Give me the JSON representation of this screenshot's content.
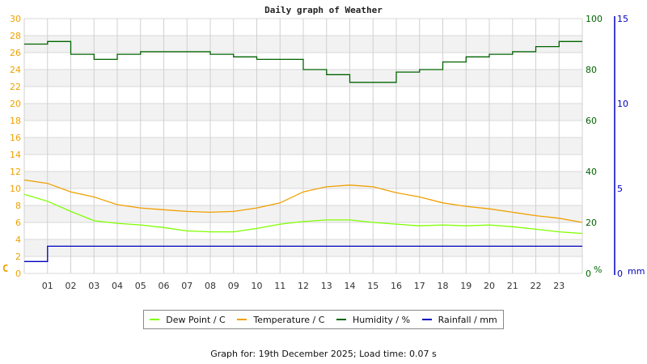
{
  "chart_data": {
    "type": "line",
    "title": "Daily graph of Weather",
    "xlabel": "",
    "x_ticks": [
      "01",
      "02",
      "03",
      "04",
      "05",
      "06",
      "07",
      "08",
      "09",
      "10",
      "11",
      "12",
      "13",
      "14",
      "15",
      "16",
      "17",
      "18",
      "19",
      "20",
      "21",
      "22",
      "23"
    ],
    "axes": {
      "left": {
        "label": "C",
        "range": [
          0,
          30
        ],
        "ticks": [
          0,
          2,
          4,
          6,
          8,
          10,
          12,
          14,
          16,
          18,
          20,
          22,
          24,
          26,
          28,
          30
        ],
        "color": "#f0a000"
      },
      "right1": {
        "label": "%",
        "range": [
          0,
          100
        ],
        "ticks": [
          0,
          20,
          40,
          60,
          80,
          100
        ],
        "color": "#006400"
      },
      "right2": {
        "label": "mm",
        "range": [
          0,
          15
        ],
        "ticks": [
          0,
          5,
          10,
          15
        ],
        "color": "#0000c0"
      }
    },
    "grid": true,
    "legend_position": "bottom",
    "x": [
      0,
      1,
      2,
      3,
      4,
      5,
      6,
      7,
      8,
      9,
      10,
      11,
      12,
      13,
      14,
      15,
      16,
      17,
      18,
      19,
      20,
      21,
      22,
      23,
      24
    ],
    "series": [
      {
        "name": "Dew Point / C",
        "color": "#7fff00",
        "axis": "left",
        "values": [
          9.3,
          8.5,
          7.3,
          6.2,
          5.9,
          5.7,
          5.4,
          5.0,
          4.9,
          4.9,
          5.3,
          5.8,
          6.1,
          6.3,
          6.3,
          6.0,
          5.8,
          5.6,
          5.7,
          5.6,
          5.7,
          5.5,
          5.2,
          4.9,
          4.7
        ]
      },
      {
        "name": "Temperature / C",
        "color": "#f0a000",
        "axis": "left",
        "values": [
          11.0,
          10.6,
          9.6,
          9.0,
          8.1,
          7.7,
          7.5,
          7.3,
          7.2,
          7.3,
          7.7,
          8.3,
          9.6,
          10.2,
          10.4,
          10.2,
          9.5,
          9.0,
          8.3,
          7.9,
          7.6,
          7.2,
          6.8,
          6.5,
          6.0
        ]
      },
      {
        "name": "Humidity / %",
        "color": "#006400",
        "axis": "right1",
        "values": [
          90,
          91,
          86,
          84,
          86,
          87,
          87,
          87,
          86,
          85,
          84,
          84,
          80,
          78,
          75,
          75,
          79,
          80,
          83,
          85,
          86,
          87,
          89,
          91,
          91
        ]
      },
      {
        "name": "Rainfall / mm",
        "color": "#0000c0",
        "axis": "right2",
        "values": [
          0.7,
          1.6,
          1.6,
          1.6,
          1.6,
          1.6,
          1.6,
          1.6,
          1.6,
          1.6,
          1.6,
          1.6,
          1.6,
          1.6,
          1.6,
          1.6,
          1.6,
          1.6,
          1.6,
          1.6,
          1.6,
          1.6,
          1.6,
          1.6,
          1.6
        ]
      }
    ]
  },
  "title": "Daily graph of Weather",
  "legend": [
    {
      "label": "Dew Point / C",
      "color": "#7fff00"
    },
    {
      "label": "Temperature / C",
      "color": "#f0a000"
    },
    {
      "label": "Humidity / %",
      "color": "#006400"
    },
    {
      "label": "Rainfall / mm",
      "color": "#0000c0"
    }
  ],
  "footer": "Graph for: 19th December 2025; Load time: 0.07 s"
}
